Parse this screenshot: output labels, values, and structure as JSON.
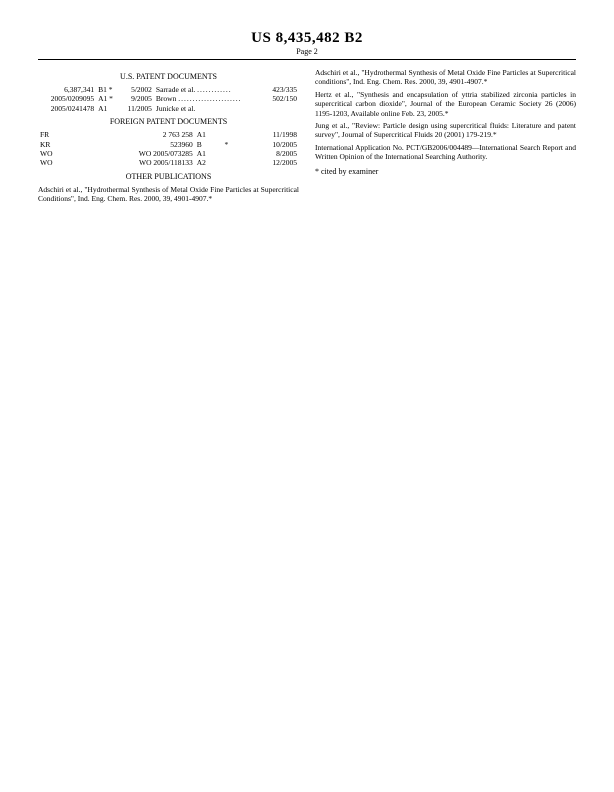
{
  "header": {
    "patent_number": "US 8,435,482 B2",
    "page_label": "Page 2"
  },
  "left": {
    "us_docs_title": "U.S. PATENT DOCUMENTS",
    "us_docs": [
      {
        "num": "6,387,341",
        "code": "B1 *",
        "date": "5/2002",
        "name": "Sarrade et al.",
        "dots": "............",
        "cls": "423/335"
      },
      {
        "num": "2005/0209095",
        "code": "A1 *",
        "date": "9/2005",
        "name": "Brown",
        "dots": "......................",
        "cls": "502/150"
      },
      {
        "num": "2005/0241478",
        "code": "A1",
        "date": "11/2005",
        "name": "Junicke et al.",
        "dots": "",
        "cls": ""
      }
    ],
    "foreign_title": "FOREIGN PATENT DOCUMENTS",
    "foreign": [
      {
        "cc": "FR",
        "num": "2 763 258",
        "code": "A1",
        "star": "",
        "date": "11/1998"
      },
      {
        "cc": "KR",
        "num": "523960",
        "code": "B",
        "star": "*",
        "date": "10/2005"
      },
      {
        "cc": "WO",
        "num": "WO 2005/073285",
        "code": "A1",
        "star": "",
        "date": "8/2005"
      },
      {
        "cc": "WO",
        "num": "WO 2005/118133",
        "code": "A2",
        "star": "",
        "date": "12/2005"
      }
    ],
    "other_title": "OTHER PUBLICATIONS",
    "other_pub": "Adschiri et al., \"Hydrothermal Synthesis of Metal Oxide Fine Particles at Supercritical Conditions\", Ind. Eng. Chem. Res. 2000, 39, 4901-4907.*"
  },
  "right": {
    "pubs": [
      "Adschiri et al., \"Hydrothermal Synthesis of Metal Oxide Fine Particles at Supercritical conditions\", Ind. Eng. Chem. Res. 2000, 39, 4901-4907.*",
      "Hertz et al., \"Synthesis and encapsulation of yttria stabilized zirconia particles in supercritical carbon dioxide\", Journal of the European Ceramic Society 26 (2006) 1195-1203, Available online Feb. 23, 2005.*",
      "Jung et al., \"Review: Particle design using supercritical fluids: Literature and patent survey\", Journal of Supercritical Fluids 20 (2001) 179-219.*",
      "International Application No. PCT/GB2006/004489—International Search Report and Written Opinion of the International Searching Authority."
    ],
    "cited": "* cited by examiner"
  }
}
